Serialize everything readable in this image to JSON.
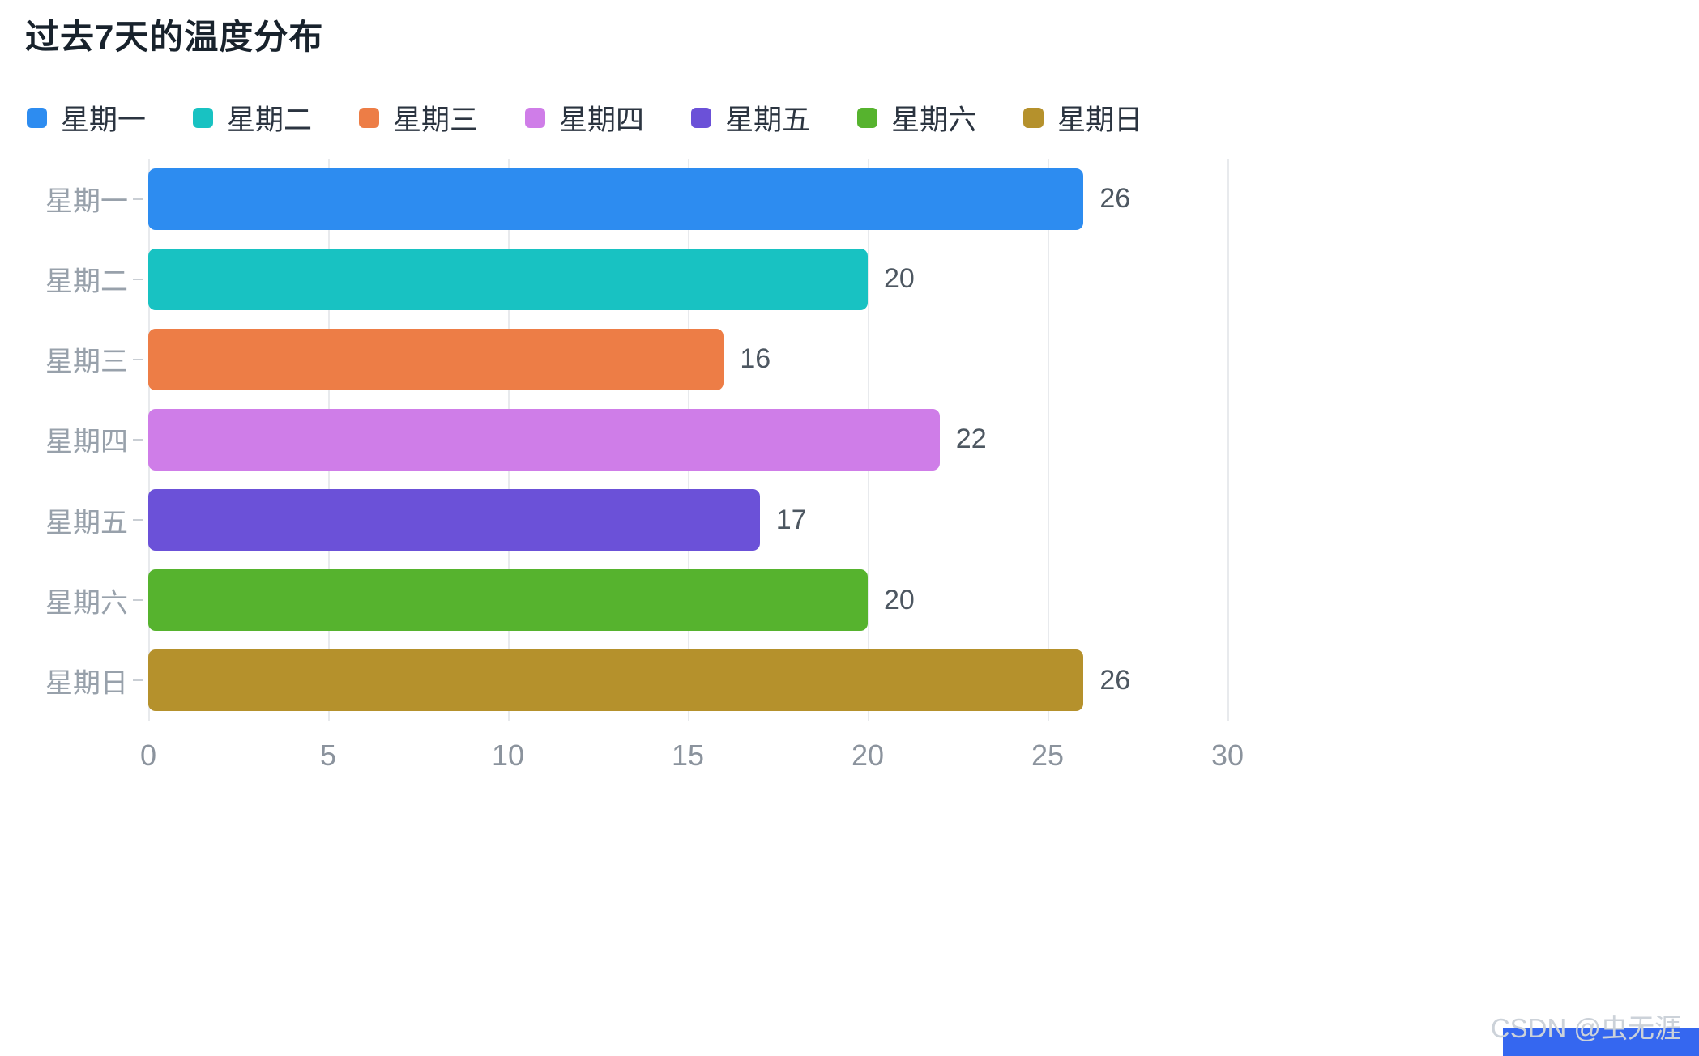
{
  "page": {
    "title": "过去7天的温度分布"
  },
  "watermark": {
    "text": "CSDN @虫无涯"
  },
  "corner_block_color": "#3567f0",
  "chart_data": {
    "type": "bar",
    "orientation": "horizontal",
    "title": "过去7天的温度分布",
    "categories": [
      "星期一",
      "星期二",
      "星期三",
      "星期四",
      "星期五",
      "星期六",
      "星期日"
    ],
    "values": [
      26,
      20,
      16,
      22,
      17,
      20,
      26
    ],
    "colors": [
      "#2d8cf0",
      "#18c2c2",
      "#ed7d46",
      "#cf7de8",
      "#6b51d8",
      "#56b32e",
      "#b5912c"
    ],
    "legend": [
      "星期一",
      "星期二",
      "星期三",
      "星期四",
      "星期五",
      "星期六",
      "星期日"
    ],
    "legend_position": "top",
    "xlabel": "",
    "ylabel": "",
    "xlim": [
      0,
      30
    ],
    "xticks": [
      0,
      5,
      10,
      15,
      20,
      25,
      30
    ],
    "grid": true,
    "value_labels": true
  }
}
